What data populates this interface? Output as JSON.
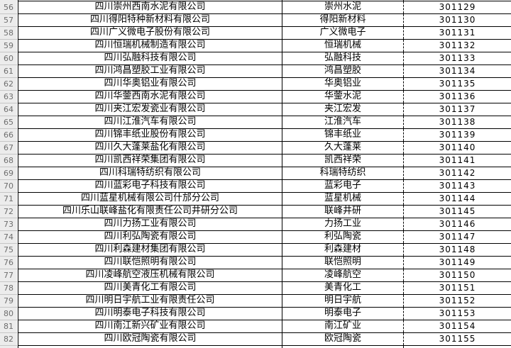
{
  "table": {
    "description_columns": [
      "row_number",
      "company_full_name",
      "company_short_name",
      "code"
    ],
    "rows": [
      {
        "row_num": "56",
        "company": "四川崇州西南水泥有限公司",
        "short": "崇州水泥",
        "code": "301129"
      },
      {
        "row_num": "57",
        "company": "四川得阳特种新材料有限公司",
        "short": "得阳新材料",
        "code": "301130"
      },
      {
        "row_num": "58",
        "company": "四川广义微电子股份有限公司",
        "short": "广义微电子",
        "code": "301131"
      },
      {
        "row_num": "59",
        "company": "四川恒瑞机械制造有限公司",
        "short": "恒瑞机械",
        "code": "301132"
      },
      {
        "row_num": "60",
        "company": "四川弘融科技有限公司",
        "short": "弘融科技",
        "code": "301133"
      },
      {
        "row_num": "61",
        "company": "四川鸿昌塑胶工业有限公司",
        "short": "鸿昌塑胶",
        "code": "301134"
      },
      {
        "row_num": "62",
        "company": "四川华奥铝业有限公司",
        "short": "华奥铝业",
        "code": "301135"
      },
      {
        "row_num": "63",
        "company": "四川华蓥西南水泥有限公司",
        "short": "华蓥水泥",
        "code": "301136"
      },
      {
        "row_num": "64",
        "company": "四川夹江宏发瓷业有限公司",
        "short": "夹江宏发",
        "code": "301137"
      },
      {
        "row_num": "65",
        "company": "四川江淮汽车有限公司",
        "short": "江淮汽车",
        "code": "301138"
      },
      {
        "row_num": "66",
        "company": "四川锦丰纸业股份有限公司",
        "short": "锦丰纸业",
        "code": "301139"
      },
      {
        "row_num": "67",
        "company": "四川久大蓬莱盐化有限公司",
        "short": "久大蓬莱",
        "code": "301140"
      },
      {
        "row_num": "68",
        "company": "四川凯西祥荣集团有限公司",
        "short": "凯西祥荣",
        "code": "301141"
      },
      {
        "row_num": "69",
        "company": "四川科瑞特纺织有限公司",
        "short": "科瑞特纺织",
        "code": "301142"
      },
      {
        "row_num": "70",
        "company": "四川蓝彩电子科技有限公司",
        "short": "蓝彩电子",
        "code": "301143"
      },
      {
        "row_num": "71",
        "company": "四川蓝星机械有限公司什邡分公司",
        "short": "蓝星机械",
        "code": "301144"
      },
      {
        "row_num": "72",
        "company": "四川乐山联峰盐化有限责任公司井研分公司",
        "short": "联峰井研",
        "code": "301145"
      },
      {
        "row_num": "73",
        "company": "四川力扬工业有限公司",
        "short": "力扬工业",
        "code": "301146"
      },
      {
        "row_num": "74",
        "company": "四川利弘陶瓷有限公司",
        "short": "利弘陶瓷",
        "code": "301147"
      },
      {
        "row_num": "75",
        "company": "四川利森建材集团有限公司",
        "short": "利森建材",
        "code": "301148"
      },
      {
        "row_num": "76",
        "company": "四川联恺照明有限公司",
        "short": "联恺照明",
        "code": "301149"
      },
      {
        "row_num": "77",
        "company": "四川凌峰航空液压机械有限公司",
        "short": "凌峰航空",
        "code": "301150"
      },
      {
        "row_num": "78",
        "company": "四川美青化工有限公司",
        "short": "美青化工",
        "code": "301151"
      },
      {
        "row_num": "79",
        "company": "四川明日宇航工业有限责任公司",
        "short": "明日宇航",
        "code": "301152"
      },
      {
        "row_num": "80",
        "company": "四川明泰电子科技有限公司",
        "short": "明泰电子",
        "code": "301153"
      },
      {
        "row_num": "81",
        "company": "四川南江新兴矿业有限公司",
        "short": "南江矿业",
        "code": "301154"
      },
      {
        "row_num": "82",
        "company": "四川欧冠陶瓷有限公司",
        "short": "欧冠陶瓷",
        "code": "301155"
      }
    ]
  },
  "colors": {
    "grid_line": "#000000",
    "page_break_dashed_line": "#000000",
    "row_header_bg": "#ececec",
    "row_header_text": "#6e6e6e",
    "cell_bg": "#ffffff",
    "cell_text": "#000000"
  }
}
